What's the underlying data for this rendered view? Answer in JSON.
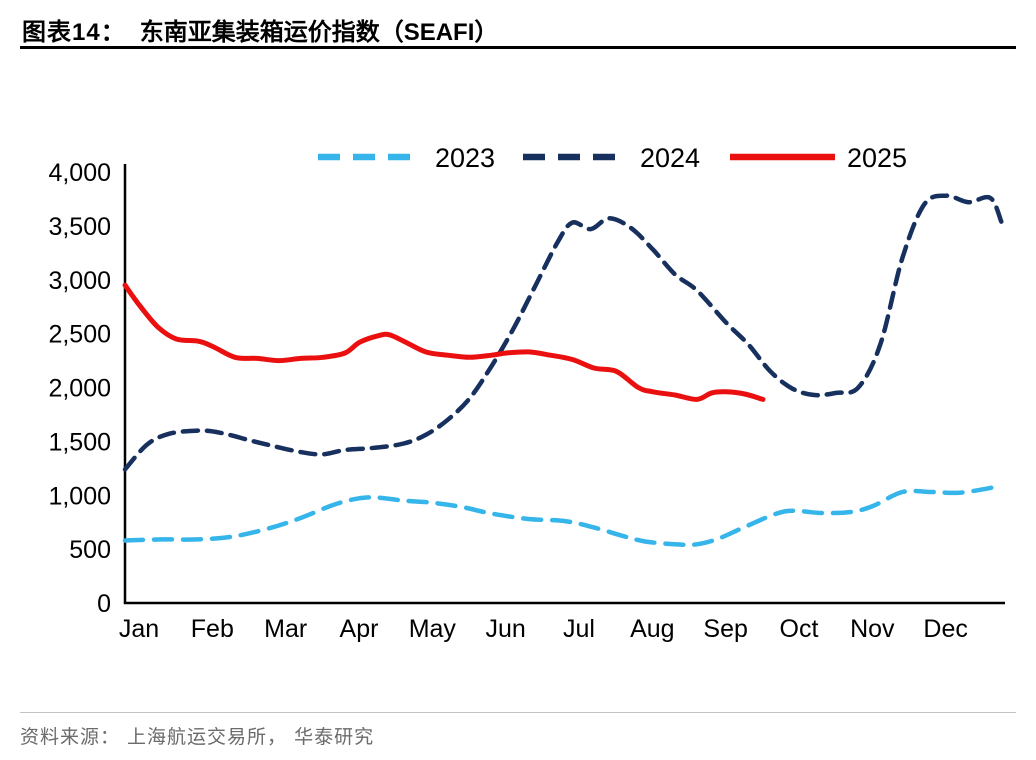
{
  "header": {
    "figure_label": "图表14：",
    "title": "东南亚集装箱运价指数（SEAFI）"
  },
  "footer": {
    "source": "资料来源： 上海航运交易所， 华泰研究"
  },
  "chart_data": {
    "type": "line",
    "title": "东南亚集装箱运价指数（SEAFI）",
    "x_labels": [
      "Jan",
      "Feb",
      "Mar",
      "Apr",
      "May",
      "Jun",
      "Jul",
      "Aug",
      "Sep",
      "Oct",
      "Nov",
      "Dec"
    ],
    "y_axis": {
      "min": 0,
      "max": 4000,
      "step": 500
    },
    "grid": false,
    "legend_position": "top-center",
    "series": [
      {
        "name": "2023",
        "color": "#35b5ea",
        "style": "dashed",
        "dash": "18 11",
        "width": 4.5,
        "x": [
          0,
          0.5,
          1,
          1.5,
          2,
          2.4,
          2.8,
          3.1,
          3.4,
          3.8,
          4.2,
          4.6,
          5,
          5.5,
          6,
          6.4,
          6.8,
          7.1,
          7.5,
          7.8,
          8.1,
          8.5,
          9,
          9.5,
          9.9,
          10.2,
          10.6,
          11,
          11.4,
          11.9
        ],
        "values": [
          580,
          590,
          590,
          620,
          700,
          790,
          900,
          960,
          980,
          950,
          930,
          890,
          830,
          780,
          760,
          700,
          620,
          570,
          545,
          545,
          600,
          720,
          850,
          835,
          845,
          900,
          1030,
          1030,
          1025,
          1080
        ]
      },
      {
        "name": "2024",
        "color": "#17305e",
        "style": "dashed",
        "dash": "15 9",
        "width": 4.5,
        "x": [
          0,
          0.3,
          0.6,
          1.0,
          1.3,
          1.7,
          2.0,
          2.4,
          2.7,
          3.0,
          3.4,
          3.8,
          4.1,
          4.4,
          4.7,
          5.0,
          5.3,
          5.6,
          5.9,
          6.1,
          6.35,
          6.6,
          6.9,
          7.2,
          7.5,
          7.8,
          8.2,
          8.5,
          8.8,
          9.1,
          9.4,
          9.7,
          10.0,
          10.3,
          10.6,
          10.9,
          11.2,
          11.5,
          11.8,
          11.95
        ],
        "values": [
          1240,
          1470,
          1570,
          1600,
          1580,
          1510,
          1460,
          1400,
          1380,
          1420,
          1440,
          1480,
          1560,
          1700,
          1900,
          2200,
          2550,
          2950,
          3350,
          3530,
          3470,
          3570,
          3480,
          3280,
          3050,
          2900,
          2600,
          2400,
          2150,
          1990,
          1930,
          1950,
          2000,
          2400,
          3200,
          3700,
          3780,
          3720,
          3760,
          3540
        ]
      },
      {
        "name": "2025",
        "color": "#eb1010",
        "style": "solid",
        "dash": null,
        "width": 5,
        "x": [
          0,
          0.2,
          0.45,
          0.7,
          1.0,
          1.2,
          1.5,
          1.8,
          2.1,
          2.4,
          2.7,
          3.0,
          3.2,
          3.45,
          3.6,
          3.8,
          4.1,
          4.4,
          4.7,
          5.0,
          5.2,
          5.5,
          5.8,
          6.1,
          6.4,
          6.7,
          7.0,
          7.2,
          7.5,
          7.8,
          8.0,
          8.2,
          8.45,
          8.7
        ],
        "values": [
          2950,
          2760,
          2560,
          2450,
          2430,
          2380,
          2280,
          2270,
          2250,
          2270,
          2280,
          2320,
          2420,
          2480,
          2490,
          2430,
          2330,
          2300,
          2280,
          2300,
          2320,
          2330,
          2300,
          2260,
          2180,
          2150,
          2000,
          1960,
          1930,
          1890,
          1950,
          1960,
          1940,
          1890
        ]
      }
    ]
  }
}
